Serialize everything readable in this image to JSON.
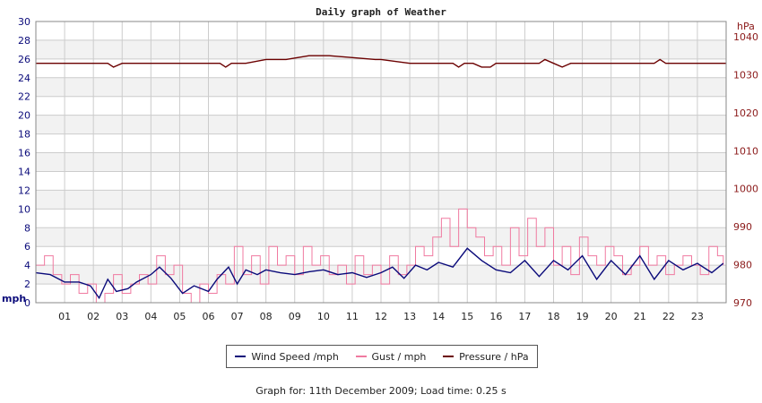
{
  "chart_data": {
    "type": "line",
    "title": "Daily graph of Weather",
    "left_axis": {
      "unit": "mph",
      "ylim": [
        0,
        30
      ],
      "ticks": [
        "0",
        "2",
        "4",
        "6",
        "8",
        "10",
        "12",
        "14",
        "16",
        "18",
        "20",
        "22",
        "24",
        "26",
        "28",
        "30"
      ]
    },
    "right_axis": {
      "unit": "hPa",
      "ylim": [
        970,
        1044
      ],
      "ticks": [
        "970",
        "980",
        "990",
        "1000",
        "1010",
        "1020",
        "1030",
        "1040"
      ]
    },
    "x_axis": {
      "range": [
        0,
        24
      ],
      "ticks": [
        "01",
        "02",
        "03",
        "04",
        "05",
        "06",
        "07",
        "08",
        "09",
        "10",
        "11",
        "12",
        "13",
        "14",
        "15",
        "16",
        "17",
        "18",
        "19",
        "20",
        "21",
        "22",
        "23"
      ]
    },
    "grid": true,
    "legend_placement": "bottom-center",
    "series": [
      {
        "name": "Wind Speed /mph",
        "axis": "left",
        "color": "#0a0a7a",
        "x": [
          0,
          0.5,
          1,
          1.5,
          1.9,
          2.2,
          2.5,
          2.8,
          3.2,
          3.5,
          4,
          4.3,
          4.7,
          5.1,
          5.5,
          6,
          6.3,
          6.7,
          7,
          7.3,
          7.7,
          8,
          8.5,
          9,
          9.5,
          10,
          10.5,
          11,
          11.5,
          12,
          12.4,
          12.8,
          13.2,
          13.6,
          14,
          14.5,
          15,
          15.5,
          16,
          16.5,
          17,
          17.5,
          18,
          18.5,
          19,
          19.5,
          20,
          20.5,
          21,
          21.5,
          22,
          22.5,
          23,
          23.5,
          23.9
        ],
        "values": [
          3.2,
          3.0,
          2.2,
          2.2,
          1.8,
          0.5,
          2.5,
          1.2,
          1.5,
          2.2,
          3.0,
          3.8,
          2.6,
          1.0,
          1.8,
          1.2,
          2.5,
          3.8,
          2.0,
          3.5,
          3.0,
          3.5,
          3.2,
          3.0,
          3.3,
          3.5,
          3.0,
          3.2,
          2.7,
          3.2,
          3.8,
          2.6,
          4.0,
          3.5,
          4.3,
          3.8,
          5.8,
          4.5,
          3.5,
          3.2,
          4.5,
          2.8,
          4.5,
          3.5,
          5.0,
          2.5,
          4.5,
          3.0,
          5.0,
          2.5,
          4.5,
          3.5,
          4.2,
          3.2,
          4.2
        ]
      },
      {
        "name": "Gust / mph",
        "axis": "left",
        "color": "#f07aa0",
        "x": [
          0,
          0.3,
          0.6,
          0.9,
          1.2,
          1.5,
          1.8,
          2.1,
          2.4,
          2.7,
          3.0,
          3.3,
          3.6,
          3.9,
          4.2,
          4.5,
          4.8,
          5.1,
          5.4,
          5.7,
          6.0,
          6.3,
          6.6,
          6.9,
          7.2,
          7.5,
          7.8,
          8.1,
          8.4,
          8.7,
          9.0,
          9.3,
          9.6,
          9.9,
          10.2,
          10.5,
          10.8,
          11.1,
          11.4,
          11.7,
          12.0,
          12.3,
          12.6,
          12.9,
          13.2,
          13.5,
          13.8,
          14.1,
          14.4,
          14.7,
          15.0,
          15.3,
          15.6,
          15.9,
          16.2,
          16.5,
          16.8,
          17.1,
          17.4,
          17.7,
          18.0,
          18.3,
          18.6,
          18.9,
          19.2,
          19.5,
          19.8,
          20.1,
          20.4,
          20.7,
          21.0,
          21.3,
          21.6,
          21.9,
          22.2,
          22.5,
          22.8,
          23.1,
          23.4,
          23.7,
          23.9
        ],
        "values": [
          4,
          5,
          3,
          2,
          3,
          1,
          2,
          0,
          1,
          3,
          1,
          2,
          3,
          2,
          5,
          3,
          4,
          1,
          0,
          2,
          1,
          3,
          2,
          6,
          3,
          5,
          2,
          6,
          4,
          5,
          3,
          6,
          4,
          5,
          3,
          4,
          2,
          5,
          3,
          4,
          2,
          5,
          3,
          4,
          6,
          5,
          7,
          9,
          6,
          10,
          8,
          7,
          5,
          6,
          4,
          8,
          5,
          9,
          6,
          8,
          4,
          6,
          3,
          7,
          5,
          4,
          6,
          5,
          3,
          4,
          6,
          4,
          5,
          3,
          4,
          5,
          4,
          3,
          6,
          5,
          4
        ]
      },
      {
        "name": "Pressure / hPa",
        "axis": "right",
        "color": "#6b0000",
        "x": [
          0,
          2.5,
          2.7,
          3.0,
          6.4,
          6.6,
          6.8,
          7.3,
          8.0,
          8.7,
          9.5,
          10.2,
          11.8,
          12.0,
          13.0,
          13.2,
          13.5,
          14.5,
          14.7,
          14.9,
          15.2,
          15.5,
          15.8,
          16.0,
          16.3,
          17.0,
          17.5,
          17.7,
          18.0,
          18.3,
          18.6,
          19.0,
          21.5,
          21.7,
          21.9,
          24.0
        ],
        "values": [
          1033,
          1033,
          1032,
          1033,
          1033,
          1032,
          1033,
          1033,
          1034,
          1034,
          1035,
          1035,
          1034,
          1034,
          1033,
          1033,
          1033,
          1033,
          1032,
          1033,
          1033,
          1032,
          1032,
          1033,
          1033,
          1033,
          1033,
          1034,
          1033,
          1032,
          1033,
          1033,
          1033,
          1034,
          1033,
          1033
        ]
      }
    ]
  },
  "legend": [
    {
      "label": "Wind Speed /mph",
      "color": "#0a0a7a"
    },
    {
      "label": "Gust / mph",
      "color": "#f07aa0"
    },
    {
      "label": "Pressure / hPa",
      "color": "#6b0000"
    }
  ],
  "footer": "Graph for: 11th December 2009; Load time: 0.25 s",
  "colors": {
    "left_axis_text": "#0a0a7a",
    "right_axis_text": "#8b1a1a",
    "band": "#f2f2f2",
    "grid": "#cccccc"
  }
}
